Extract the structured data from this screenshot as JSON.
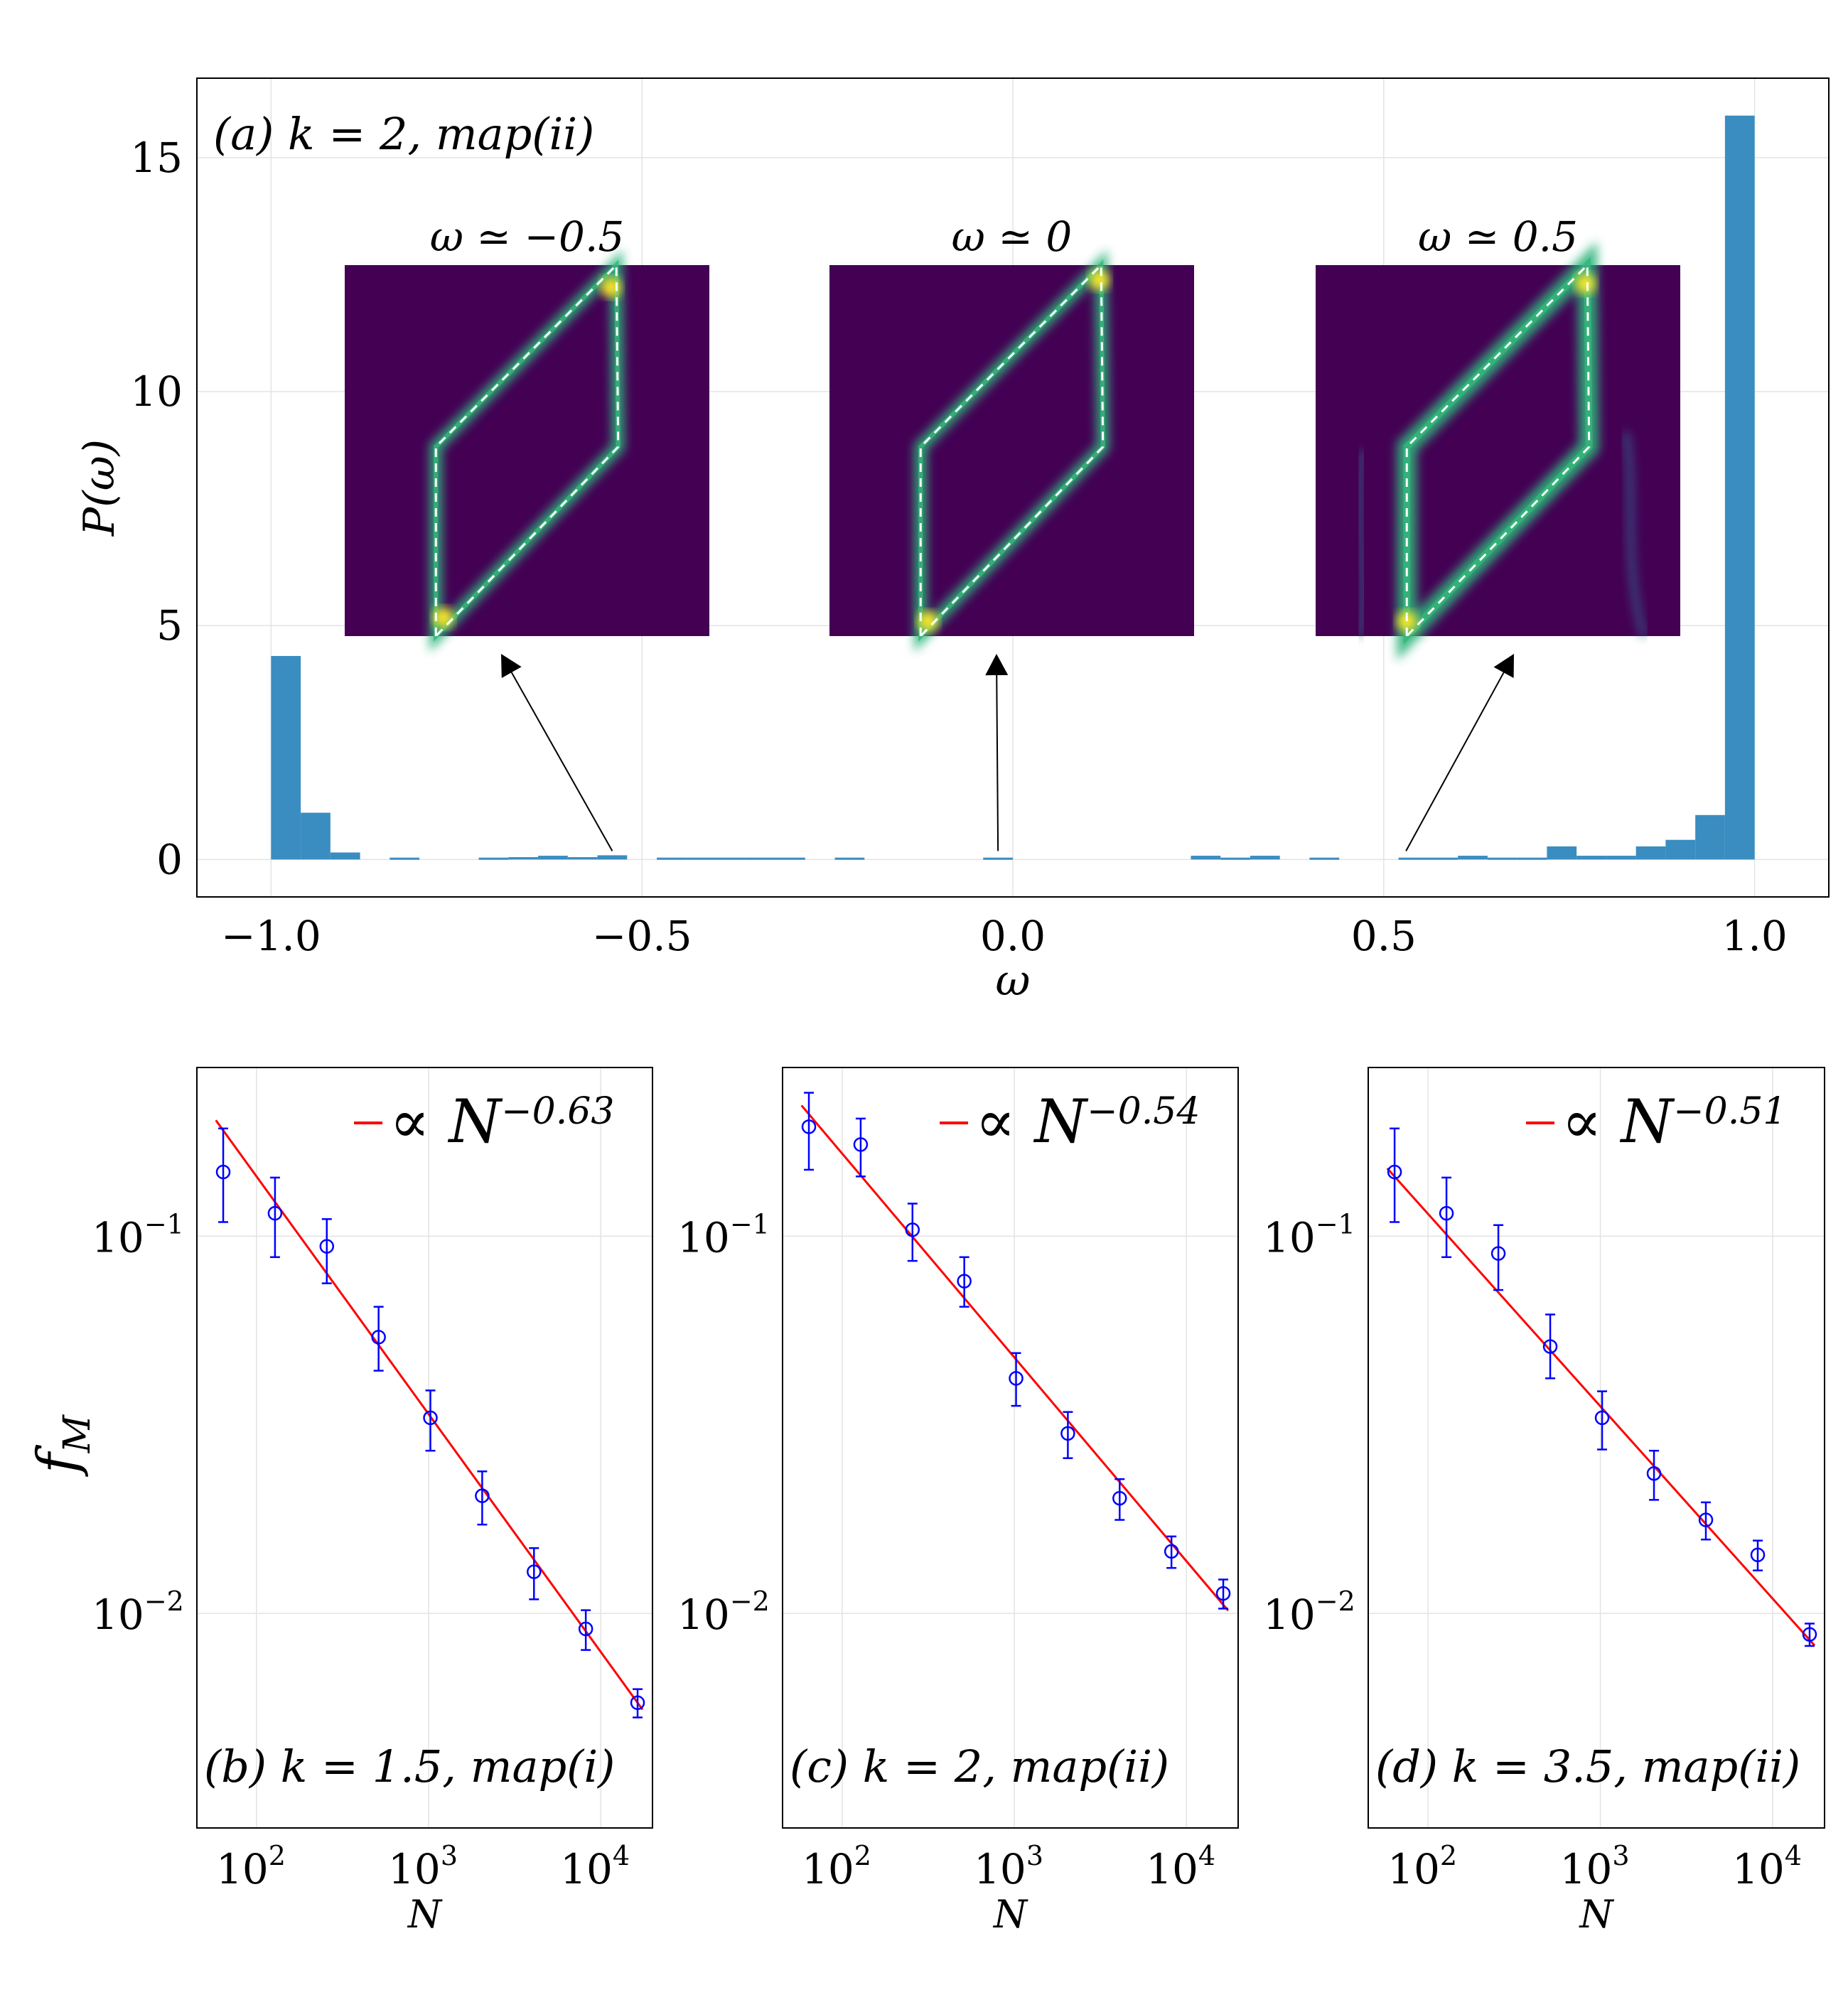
{
  "chart_data": [
    {
      "id": "a",
      "type": "bar",
      "panel_label": "(a)  k = 2,  map(ii)",
      "xlabel": "ω",
      "ylabel": "P(ω)",
      "xlim": [
        -1.1,
        1.1
      ],
      "ylim": [
        -0.8,
        16.7
      ],
      "xticks": [
        -1.0,
        -0.5,
        0.0,
        0.5,
        1.0
      ],
      "xtick_labels": [
        "−1.0",
        "−0.5",
        "0.0",
        "0.5",
        "1.0"
      ],
      "yticks": [
        0,
        5,
        10,
        15
      ],
      "ytick_labels": [
        "0",
        "5",
        "10",
        "15"
      ],
      "grid": true,
      "bar_color": "#3a8dc1",
      "bin_width": 0.04,
      "bins": [
        {
          "x": -0.98,
          "y": 4.35
        },
        {
          "x": -0.94,
          "y": 1.0
        },
        {
          "x": -0.9,
          "y": 0.15
        },
        {
          "x": -0.82,
          "y": 0.04
        },
        {
          "x": -0.7,
          "y": 0.04
        },
        {
          "x": -0.66,
          "y": 0.05
        },
        {
          "x": -0.62,
          "y": 0.08
        },
        {
          "x": -0.58,
          "y": 0.05
        },
        {
          "x": -0.54,
          "y": 0.09
        },
        {
          "x": -0.46,
          "y": 0.04
        },
        {
          "x": -0.42,
          "y": 0.04
        },
        {
          "x": -0.38,
          "y": 0.04
        },
        {
          "x": -0.34,
          "y": 0.04
        },
        {
          "x": -0.3,
          "y": 0.04
        },
        {
          "x": -0.22,
          "y": 0.04
        },
        {
          "x": -0.02,
          "y": 0.04
        },
        {
          "x": 0.26,
          "y": 0.08
        },
        {
          "x": 0.3,
          "y": 0.04
        },
        {
          "x": 0.34,
          "y": 0.08
        },
        {
          "x": 0.42,
          "y": 0.04
        },
        {
          "x": 0.54,
          "y": 0.04
        },
        {
          "x": 0.58,
          "y": 0.04
        },
        {
          "x": 0.62,
          "y": 0.08
        },
        {
          "x": 0.66,
          "y": 0.04
        },
        {
          "x": 0.7,
          "y": 0.04
        },
        {
          "x": 0.74,
          "y": 0.28
        },
        {
          "x": 0.78,
          "y": 0.08
        },
        {
          "x": 0.82,
          "y": 0.08
        },
        {
          "x": 0.86,
          "y": 0.28
        },
        {
          "x": 0.9,
          "y": 0.42
        },
        {
          "x": 0.94,
          "y": 0.95
        },
        {
          "x": 0.98,
          "y": 15.9
        }
      ],
      "insets": [
        {
          "title": "ω ≃ −0.5",
          "arrow_from_omega": -0.54
        },
        {
          "title": "ω ≃ 0",
          "arrow_from_omega": -0.02
        },
        {
          "title": "ω ≃ 0.5",
          "arrow_from_omega": 0.53
        }
      ]
    },
    {
      "id": "b",
      "type": "scatter",
      "panel_label": "(b)  k = 1.5,  map(i)",
      "xlabel": "N",
      "ylabel": "f_M",
      "xscale": "log",
      "yscale": "log",
      "xlim": [
        45,
        20000
      ],
      "ylim": [
        0.0027,
        0.28
      ],
      "xtick_labels": [
        "10",
        "10",
        "10"
      ],
      "xtick_exponents": [
        "2",
        "3",
        "4"
      ],
      "ytick_labels": [
        "10",
        "10"
      ],
      "ytick_exponents": [
        "−1",
        "−2"
      ],
      "grid": true,
      "marker_color": "#0000ff",
      "fit_color": "#ff0000",
      "fit_label": "∝ N",
      "fit_exponent_label": "−0.63",
      "fit_exponent": -0.63,
      "fit_prefactor": 2.62,
      "x": [
        64,
        128,
        256,
        512,
        1024,
        2048,
        4096,
        8192,
        16384
      ],
      "y": [
        0.148,
        0.115,
        0.094,
        0.054,
        0.033,
        0.0205,
        0.0129,
        0.0091,
        0.0058
      ],
      "err_low": [
        0.039,
        0.027,
        0.019,
        0.01,
        0.006,
        0.0033,
        0.002,
        0.0011,
        0.0005
      ],
      "err_high": [
        0.045,
        0.028,
        0.017,
        0.011,
        0.006,
        0.0033,
        0.002,
        0.0011,
        0.0005
      ]
    },
    {
      "id": "c",
      "type": "scatter",
      "panel_label": "(c)  k = 2,  map(ii)",
      "xlabel": "N",
      "ylabel": "",
      "xscale": "log",
      "yscale": "log",
      "xlim": [
        45,
        20000
      ],
      "ylim": [
        0.0027,
        0.28
      ],
      "xtick_labels": [
        "10",
        "10",
        "10"
      ],
      "xtick_exponents": [
        "2",
        "3",
        "4"
      ],
      "ytick_labels": [
        "10",
        "10"
      ],
      "ytick_exponents": [
        "−1",
        "−2"
      ],
      "grid": true,
      "marker_color": "#0000ff",
      "fit_color": "#ff0000",
      "fit_label": "∝ N",
      "fit_exponent_label": "−0.54",
      "fit_exponent": -0.54,
      "fit_prefactor": 1.99,
      "x": [
        64,
        128,
        256,
        512,
        1024,
        2048,
        4096,
        8192,
        16384
      ],
      "y": [
        0.195,
        0.175,
        0.104,
        0.076,
        0.042,
        0.03,
        0.0202,
        0.0146,
        0.0113
      ],
      "err_low": [
        0.045,
        0.031,
        0.018,
        0.011,
        0.0065,
        0.0042,
        0.0025,
        0.0014,
        0.001
      ],
      "err_high": [
        0.045,
        0.03,
        0.018,
        0.012,
        0.007,
        0.0042,
        0.0025,
        0.0014,
        0.001
      ]
    },
    {
      "id": "d",
      "type": "scatter",
      "panel_label": "(d)  k = 3.5,  map(ii)",
      "xlabel": "N",
      "ylabel": "",
      "xscale": "log",
      "yscale": "log",
      "xlim": [
        45,
        20000
      ],
      "ylim": [
        0.0027,
        0.28
      ],
      "xtick_labels": [
        "10",
        "10",
        "10"
      ],
      "xtick_exponents": [
        "2",
        "3",
        "4"
      ],
      "ytick_labels": [
        "10",
        "10"
      ],
      "ytick_exponents": [
        "−1",
        "−2"
      ],
      "grid": true,
      "marker_color": "#0000ff",
      "fit_color": "#ff0000",
      "fit_label": "∝ N",
      "fit_exponent_label": "−0.51",
      "fit_exponent": -0.51,
      "fit_prefactor": 1.2,
      "x": [
        64,
        128,
        256,
        512,
        1024,
        2048,
        4096,
        8192,
        16384
      ],
      "y": [
        0.148,
        0.115,
        0.09,
        0.051,
        0.033,
        0.0235,
        0.0177,
        0.0143,
        0.0088
      ],
      "err_low": [
        0.039,
        0.027,
        0.018,
        0.009,
        0.0058,
        0.0035,
        0.002,
        0.0013,
        0.0006
      ],
      "err_high": [
        0.045,
        0.028,
        0.017,
        0.011,
        0.0058,
        0.0035,
        0.002,
        0.0013,
        0.0006
      ]
    }
  ]
}
